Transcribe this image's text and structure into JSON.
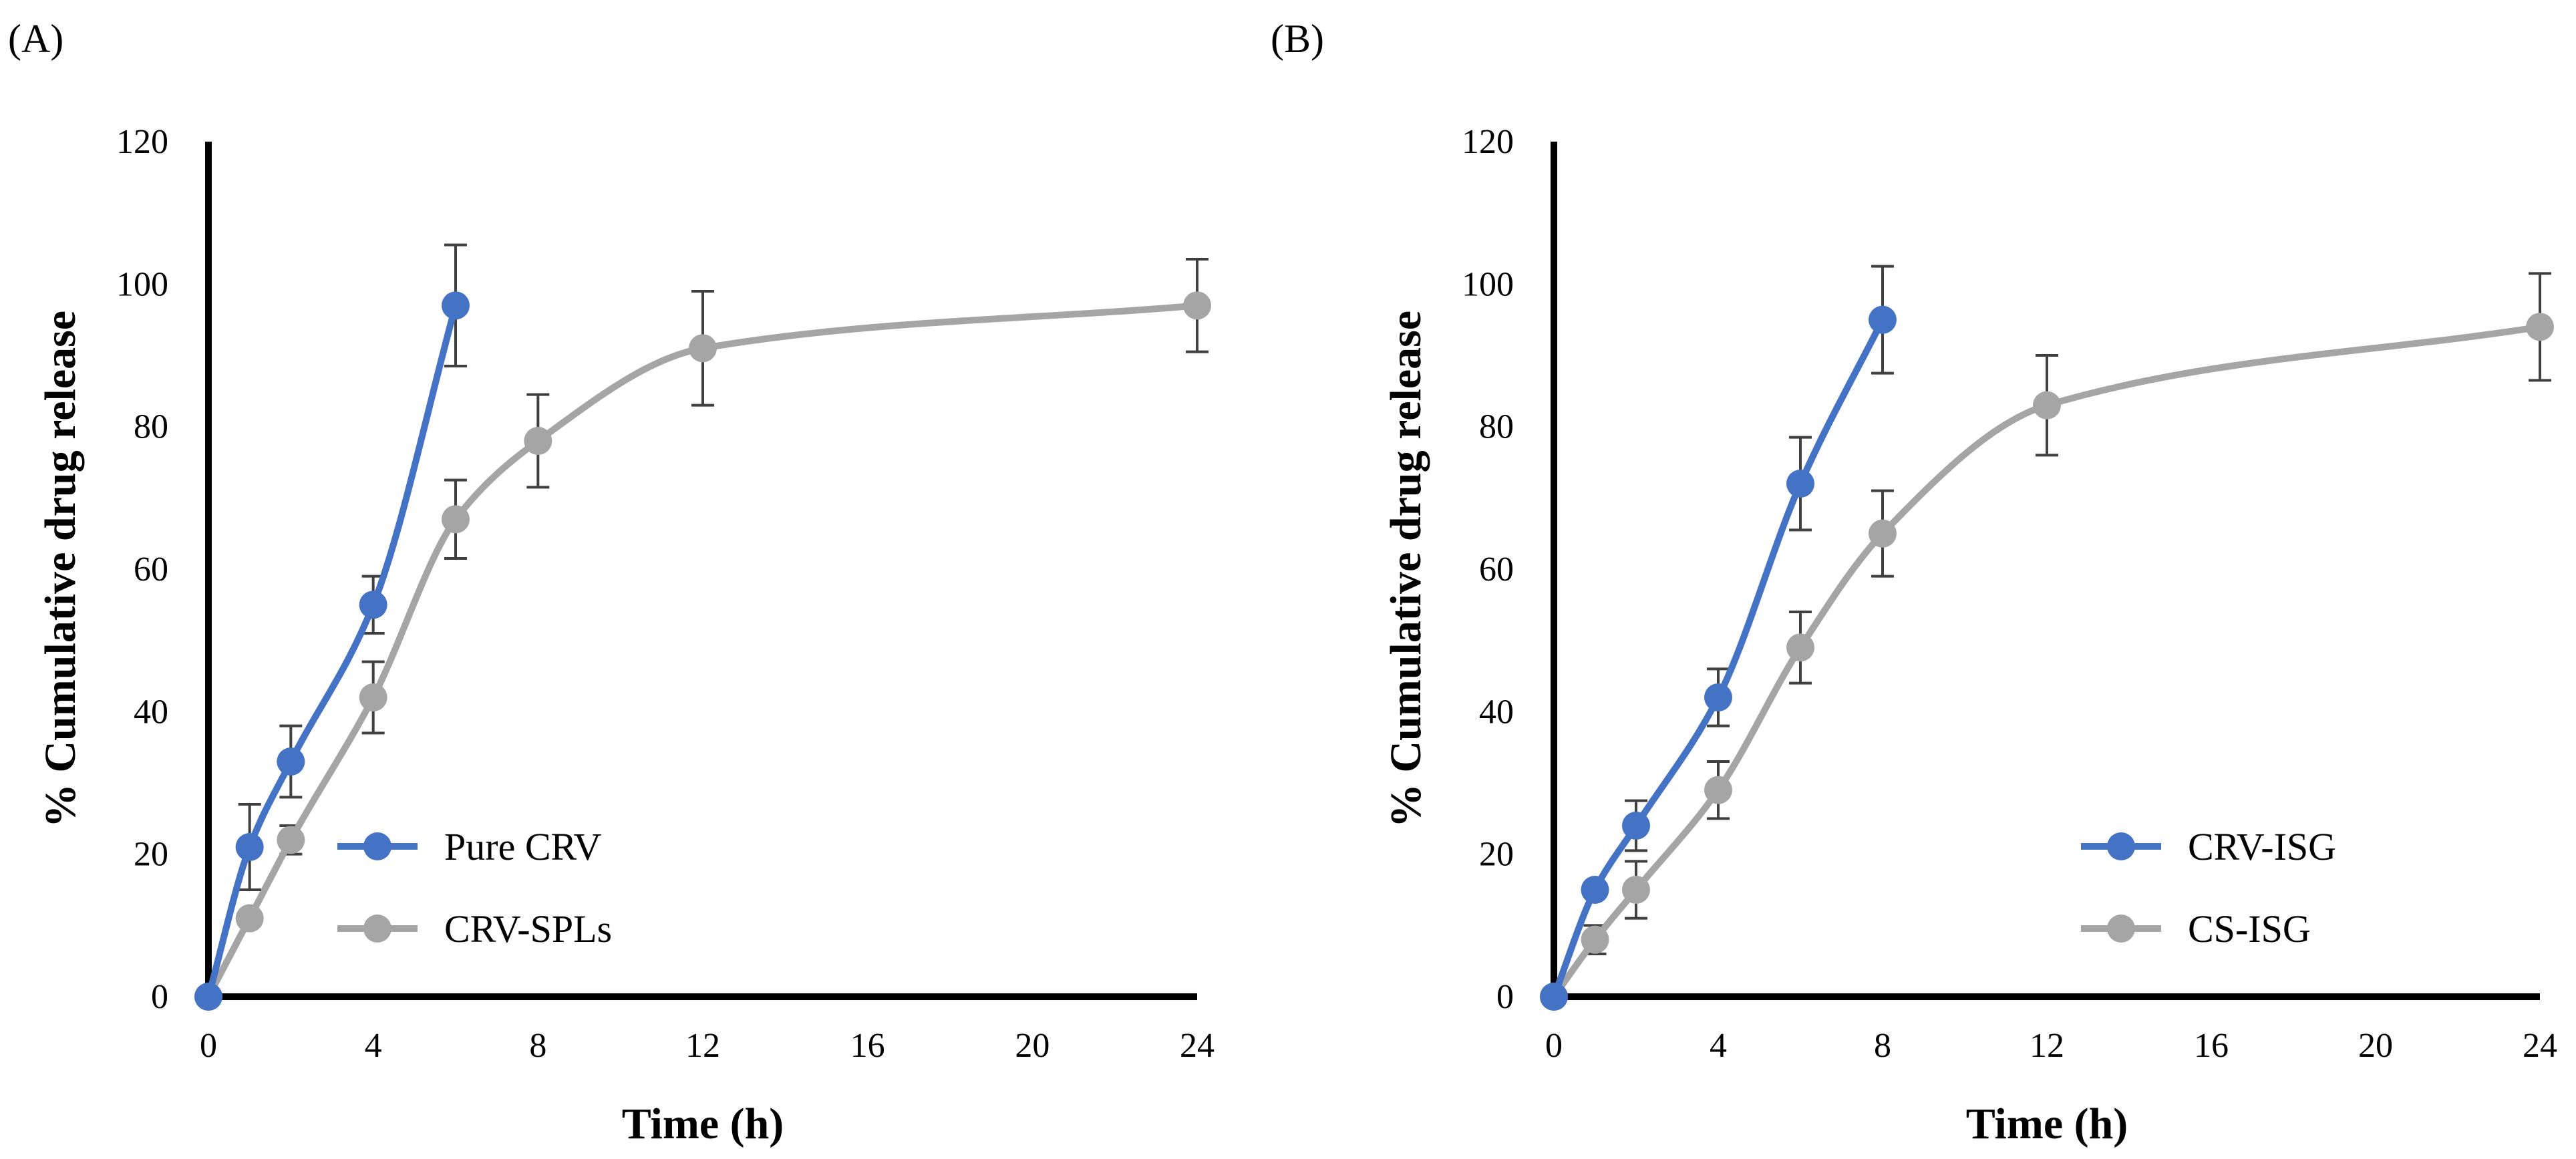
{
  "figure": {
    "colors": {
      "series1": "#4472C4",
      "series2": "#A5A5A5",
      "axis": "#000000",
      "errorbar": "#404040"
    }
  },
  "chart_data": [
    {
      "panel": "(A)",
      "type": "line",
      "xlabel": "Time (h)",
      "ylabel": "% Cumulative drug release",
      "xlim": [
        0,
        24
      ],
      "ylim": [
        0,
        120
      ],
      "xticks": [
        0,
        4,
        8,
        12,
        16,
        20,
        24
      ],
      "yticks": [
        0,
        20,
        40,
        60,
        80,
        100,
        120
      ],
      "grid": false,
      "legend": "bottom-center",
      "series": [
        {
          "name": "Pure CRV",
          "color": "#4472C4",
          "x": [
            0,
            1,
            2,
            4,
            6
          ],
          "y": [
            0,
            21,
            33,
            55,
            97
          ],
          "error": [
            0,
            6,
            5,
            4,
            8.5
          ]
        },
        {
          "name": "CRV-SPLs",
          "color": "#A5A5A5",
          "x": [
            0,
            1,
            2,
            4,
            6,
            8,
            12,
            24
          ],
          "y": [
            0,
            11,
            22,
            42,
            67,
            78,
            91,
            97
          ],
          "error": [
            0,
            0,
            2,
            5,
            5.5,
            6.5,
            8,
            6.5
          ]
        }
      ]
    },
    {
      "panel": "(B)",
      "type": "line",
      "xlabel": "Time (h)",
      "ylabel": "% Cumulative drug release",
      "xlim": [
        0,
        24
      ],
      "ylim": [
        0,
        120
      ],
      "xticks": [
        0,
        4,
        8,
        12,
        16,
        20,
        24
      ],
      "yticks": [
        0,
        20,
        40,
        60,
        80,
        100,
        120
      ],
      "grid": false,
      "legend": "bottom-right",
      "series": [
        {
          "name": "CRV-ISG",
          "color": "#4472C4",
          "x": [
            0,
            1,
            2,
            4,
            6,
            8
          ],
          "y": [
            0,
            15,
            24,
            42,
            72,
            95
          ],
          "error": [
            0,
            0,
            3.5,
            4,
            6.5,
            7.5
          ]
        },
        {
          "name": "CS-ISG",
          "color": "#A5A5A5",
          "x": [
            0,
            1,
            2,
            4,
            6,
            8,
            12,
            24
          ],
          "y": [
            0,
            8,
            15,
            29,
            49,
            65,
            83,
            94
          ],
          "error": [
            0,
            2,
            4,
            4,
            5,
            6,
            7,
            7.5
          ]
        }
      ]
    }
  ]
}
